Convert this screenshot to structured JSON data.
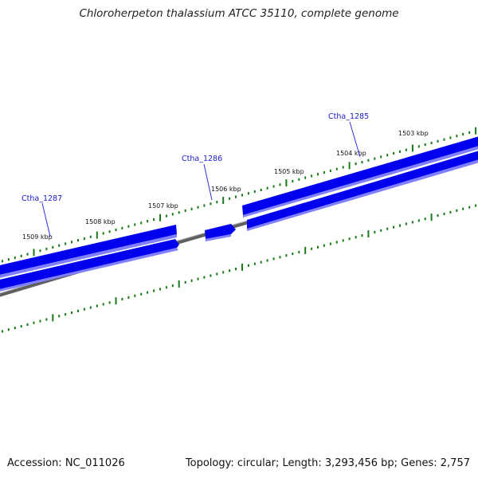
{
  "title": "Chloroherpeton thalassium ATCC 35110, complete genome",
  "footer": {
    "accession": "Accession: NC_011026",
    "stats": "Topology: circular; Length: 3,293,456 bp; Genes: 2,757"
  },
  "scale_labels": [
    "1509 kbp",
    "1508 kbp",
    "1507 kbp",
    "1506 kbp",
    "1505 kbp",
    "1504 kbp",
    "1503 kbp"
  ],
  "genes": [
    "Ctha_1287",
    "Ctha_1286",
    "Ctha_1285"
  ],
  "colors": {
    "gene": "#0000ee",
    "gene_light": "#6060ff",
    "tick": "#1a7a1a",
    "backbone": "#7a7a7a",
    "label_line": "#3030dd"
  }
}
